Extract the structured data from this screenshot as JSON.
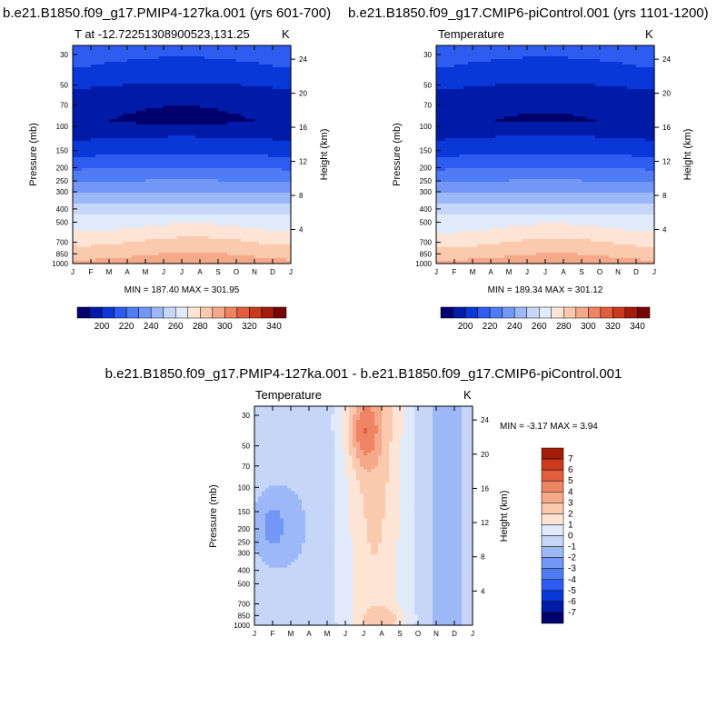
{
  "chart_data": [
    {
      "type": "contour",
      "title": "b.e21.B1850.f09_g17.PMIP4-127ka.001 (yrs 601-700)",
      "left_label": "T at -12.72251308900523,131.25",
      "units": "K",
      "xticks": [
        "J",
        "F",
        "M",
        "A",
        "M",
        "J",
        "J",
        "A",
        "S",
        "O",
        "N",
        "D",
        "J"
      ],
      "ylabel": "Pressure (mb)",
      "yticks": [
        "30",
        "50",
        "70",
        "100",
        "150",
        "200",
        "250",
        "300",
        "400",
        "500",
        "700",
        "850",
        "1000"
      ],
      "y2label": "Height (km)",
      "y2ticks": [
        "24",
        "20",
        "16",
        "12",
        "8",
        "4"
      ],
      "min": 187.4,
      "max": 301.95,
      "minmax_text": "MIN = 187.40 MAX = 301.95",
      "colorbar_labels": [
        "200",
        "220",
        "240",
        "260",
        "280",
        "300",
        "320",
        "340"
      ],
      "levels": [
        190,
        200,
        210,
        220,
        230,
        240,
        250,
        260,
        270,
        280,
        290,
        300,
        310,
        320,
        330,
        340
      ],
      "profile_levels_mb": [
        30,
        50,
        70,
        100,
        150,
        200,
        250,
        300,
        400,
        500,
        700,
        850,
        1000
      ],
      "profile_K": [
        218,
        207,
        195,
        192,
        202,
        215,
        226,
        236,
        252,
        265,
        280,
        288,
        296
      ]
    },
    {
      "type": "contour",
      "title": "b.e21.B1850.f09_g17.CMIP6-piControl.001 (yrs 1101-1200)",
      "left_label": "Temperature",
      "units": "K",
      "xticks": [
        "J",
        "F",
        "M",
        "A",
        "M",
        "J",
        "J",
        "A",
        "S",
        "O",
        "N",
        "D",
        "J"
      ],
      "ylabel": "Pressure (mb)",
      "yticks": [
        "30",
        "50",
        "70",
        "100",
        "150",
        "200",
        "250",
        "300",
        "400",
        "500",
        "700",
        "850",
        "1000"
      ],
      "y2label": "Height (km)",
      "y2ticks": [
        "24",
        "20",
        "16",
        "12",
        "8",
        "4"
      ],
      "min": 189.34,
      "max": 301.12,
      "minmax_text": "MIN = 189.34 MAX = 301.12",
      "colorbar_labels": [
        "200",
        "220",
        "240",
        "260",
        "280",
        "300",
        "320",
        "340"
      ],
      "levels": [
        190,
        200,
        210,
        220,
        230,
        240,
        250,
        260,
        270,
        280,
        290,
        300,
        310,
        320,
        330,
        340
      ],
      "profile_levels_mb": [
        30,
        50,
        70,
        100,
        150,
        200,
        250,
        300,
        400,
        500,
        700,
        850,
        1000
      ],
      "profile_K": [
        218,
        207,
        196,
        193,
        202,
        215,
        226,
        236,
        252,
        265,
        279,
        287,
        296
      ]
    },
    {
      "type": "contour",
      "title": "b.e21.B1850.f09_g17.PMIP4-127ka.001 - b.e21.B1850.f09_g17.CMIP6-piControl.001",
      "left_label": "Temperature",
      "units": "K",
      "xticks": [
        "J",
        "F",
        "M",
        "A",
        "M",
        "J",
        "J",
        "A",
        "S",
        "O",
        "N",
        "D",
        "J"
      ],
      "ylabel": "Pressure (mb)",
      "yticks": [
        "30",
        "50",
        "70",
        "100",
        "150",
        "200",
        "250",
        "300",
        "400",
        "500",
        "700",
        "850",
        "1000"
      ],
      "y2label": "Height (km)",
      "y2ticks": [
        "24",
        "20",
        "16",
        "12",
        "8",
        "4"
      ],
      "min": -3.17,
      "max": 3.94,
      "minmax_text": "MIN =  -3.17 MAX =   3.94",
      "colorbar_labels": [
        "7",
        "6",
        "5",
        "4",
        "3",
        "2",
        "1",
        "0",
        "-1",
        "-2",
        "-3",
        "-4",
        "-5",
        "-6",
        "-7"
      ],
      "levels": [
        -7,
        -6,
        -5,
        -4,
        -3,
        -2,
        -1,
        0,
        1,
        2,
        3,
        4,
        5,
        6,
        7
      ]
    }
  ],
  "colors": {
    "temp_scale": [
      "#00006e",
      "#001ba8",
      "#0a37d8",
      "#2e5cf0",
      "#4f7cf5",
      "#7397f7",
      "#9cb8f7",
      "#c5d6f8",
      "#e0eafb",
      "#fde4d4",
      "#fbc9ae",
      "#f6a88a",
      "#ee8462",
      "#e35d3c",
      "#cb3a1d",
      "#a31c0a",
      "#770505"
    ],
    "diff_scale": [
      "#00006e",
      "#001ba8",
      "#0a37d8",
      "#2e5cf0",
      "#4f7cf5",
      "#7397f7",
      "#9cb8f7",
      "#c5d6f8",
      "#e0eafb",
      "#fde4d4",
      "#fbc9ae",
      "#f6a88a",
      "#ee8462",
      "#e35d3c",
      "#cb3a1d",
      "#a31c0a"
    ]
  }
}
